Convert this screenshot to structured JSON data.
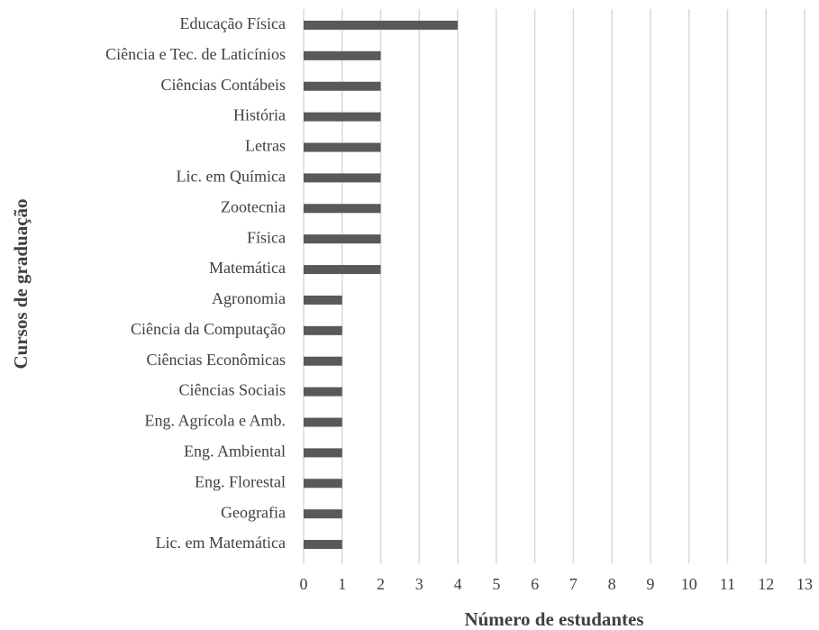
{
  "chart_data": {
    "type": "bar",
    "orientation": "horizontal",
    "xlabel": "Número de estudantes",
    "ylabel": "Cursos de graduação",
    "categories": [
      "Educação Física",
      "Ciência e Tec. de Laticínios",
      "Ciências Contábeis",
      "História",
      "Letras",
      "Lic. em Química",
      "Zootecnia",
      "Física",
      "Matemática",
      "Agronomia",
      "Ciência da Computação",
      "Ciências Econômicas",
      "Ciências Sociais",
      "Eng. Agrícola e Amb.",
      "Eng. Ambiental",
      "Eng. Florestal",
      "Geografia",
      "Lic. em Matemática"
    ],
    "values": [
      4,
      2,
      2,
      2,
      2,
      2,
      2,
      2,
      2,
      1,
      1,
      1,
      1,
      1,
      1,
      1,
      1,
      1
    ],
    "color": "#595959",
    "xlim": [
      0,
      13
    ],
    "xticks": [
      0,
      1,
      2,
      3,
      4,
      5,
      6,
      7,
      8,
      9,
      10,
      11,
      12,
      13
    ],
    "grid": true
  }
}
